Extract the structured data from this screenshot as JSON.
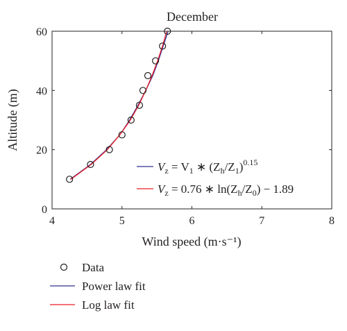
{
  "chart_data": {
    "type": "scatter",
    "title": "December",
    "xlabel": "Wind speed (m·s⁻¹)",
    "ylabel": "Altitude (m)",
    "xlim": [
      4,
      8
    ],
    "ylim": [
      0,
      60
    ],
    "xticks": [
      "4",
      "5",
      "6",
      "7",
      "8"
    ],
    "yticks": [
      "0",
      "20",
      "40",
      "60"
    ],
    "grid": false,
    "series": [
      {
        "name": "Data",
        "kind": "markers",
        "marker": "open-circle",
        "color": "#231f20",
        "points": [
          {
            "x": 4.25,
            "y": 10
          },
          {
            "x": 4.55,
            "y": 15
          },
          {
            "x": 4.82,
            "y": 20
          },
          {
            "x": 5.0,
            "y": 25
          },
          {
            "x": 5.13,
            "y": 30
          },
          {
            "x": 5.25,
            "y": 35
          },
          {
            "x": 5.3,
            "y": 40
          },
          {
            "x": 5.37,
            "y": 45
          },
          {
            "x": 5.48,
            "y": 50
          },
          {
            "x": 5.58,
            "y": 55
          },
          {
            "x": 5.65,
            "y": 60
          }
        ]
      },
      {
        "name": "Power law fit",
        "kind": "line",
        "color": "#2e3192",
        "points": [
          {
            "x": 4.26,
            "y": 10
          },
          {
            "x": 4.55,
            "y": 15
          },
          {
            "x": 4.78,
            "y": 20
          },
          {
            "x": 4.97,
            "y": 25
          },
          {
            "x": 5.11,
            "y": 30
          },
          {
            "x": 5.23,
            "y": 35
          },
          {
            "x": 5.34,
            "y": 40
          },
          {
            "x": 5.44,
            "y": 45
          },
          {
            "x": 5.52,
            "y": 50
          },
          {
            "x": 5.59,
            "y": 55
          },
          {
            "x": 5.66,
            "y": 60
          }
        ]
      },
      {
        "name": "Log law fit",
        "kind": "line",
        "color": "#ed1c24",
        "points": [
          {
            "x": 4.27,
            "y": 10
          },
          {
            "x": 4.56,
            "y": 15
          },
          {
            "x": 4.79,
            "y": 20
          },
          {
            "x": 4.97,
            "y": 25
          },
          {
            "x": 5.12,
            "y": 30
          },
          {
            "x": 5.24,
            "y": 35
          },
          {
            "x": 5.34,
            "y": 40
          },
          {
            "x": 5.43,
            "y": 45
          },
          {
            "x": 5.51,
            "y": 50
          },
          {
            "x": 5.58,
            "y": 55
          },
          {
            "x": 5.64,
            "y": 60
          }
        ]
      }
    ],
    "annotations": {
      "power_law": {
        "lhs": "V",
        "lhs_sub": "z",
        "mid": " = V",
        "mid_sub": "1",
        "op": " ∗ (Z",
        "h_sub": "h",
        "slash": "/Z",
        "one_sub": "1",
        "close": ")",
        "exp": "0.15"
      },
      "log_law": {
        "lhs": "V",
        "lhs_sub": "z",
        "rest1": " = 0.76 ∗ ln(Z",
        "h_sub": "h",
        "slash": "/Z",
        "zero_sub": "0",
        "rest2": ") − 1.89"
      }
    },
    "legend": {
      "placement": "below",
      "items": [
        {
          "label": "Data",
          "symbol": "open-circle",
          "color": "#231f20"
        },
        {
          "label": "Power law fit",
          "symbol": "line",
          "color": "#2e3192"
        },
        {
          "label": "Log law fit",
          "symbol": "line",
          "color": "#ed1c24"
        }
      ]
    }
  }
}
